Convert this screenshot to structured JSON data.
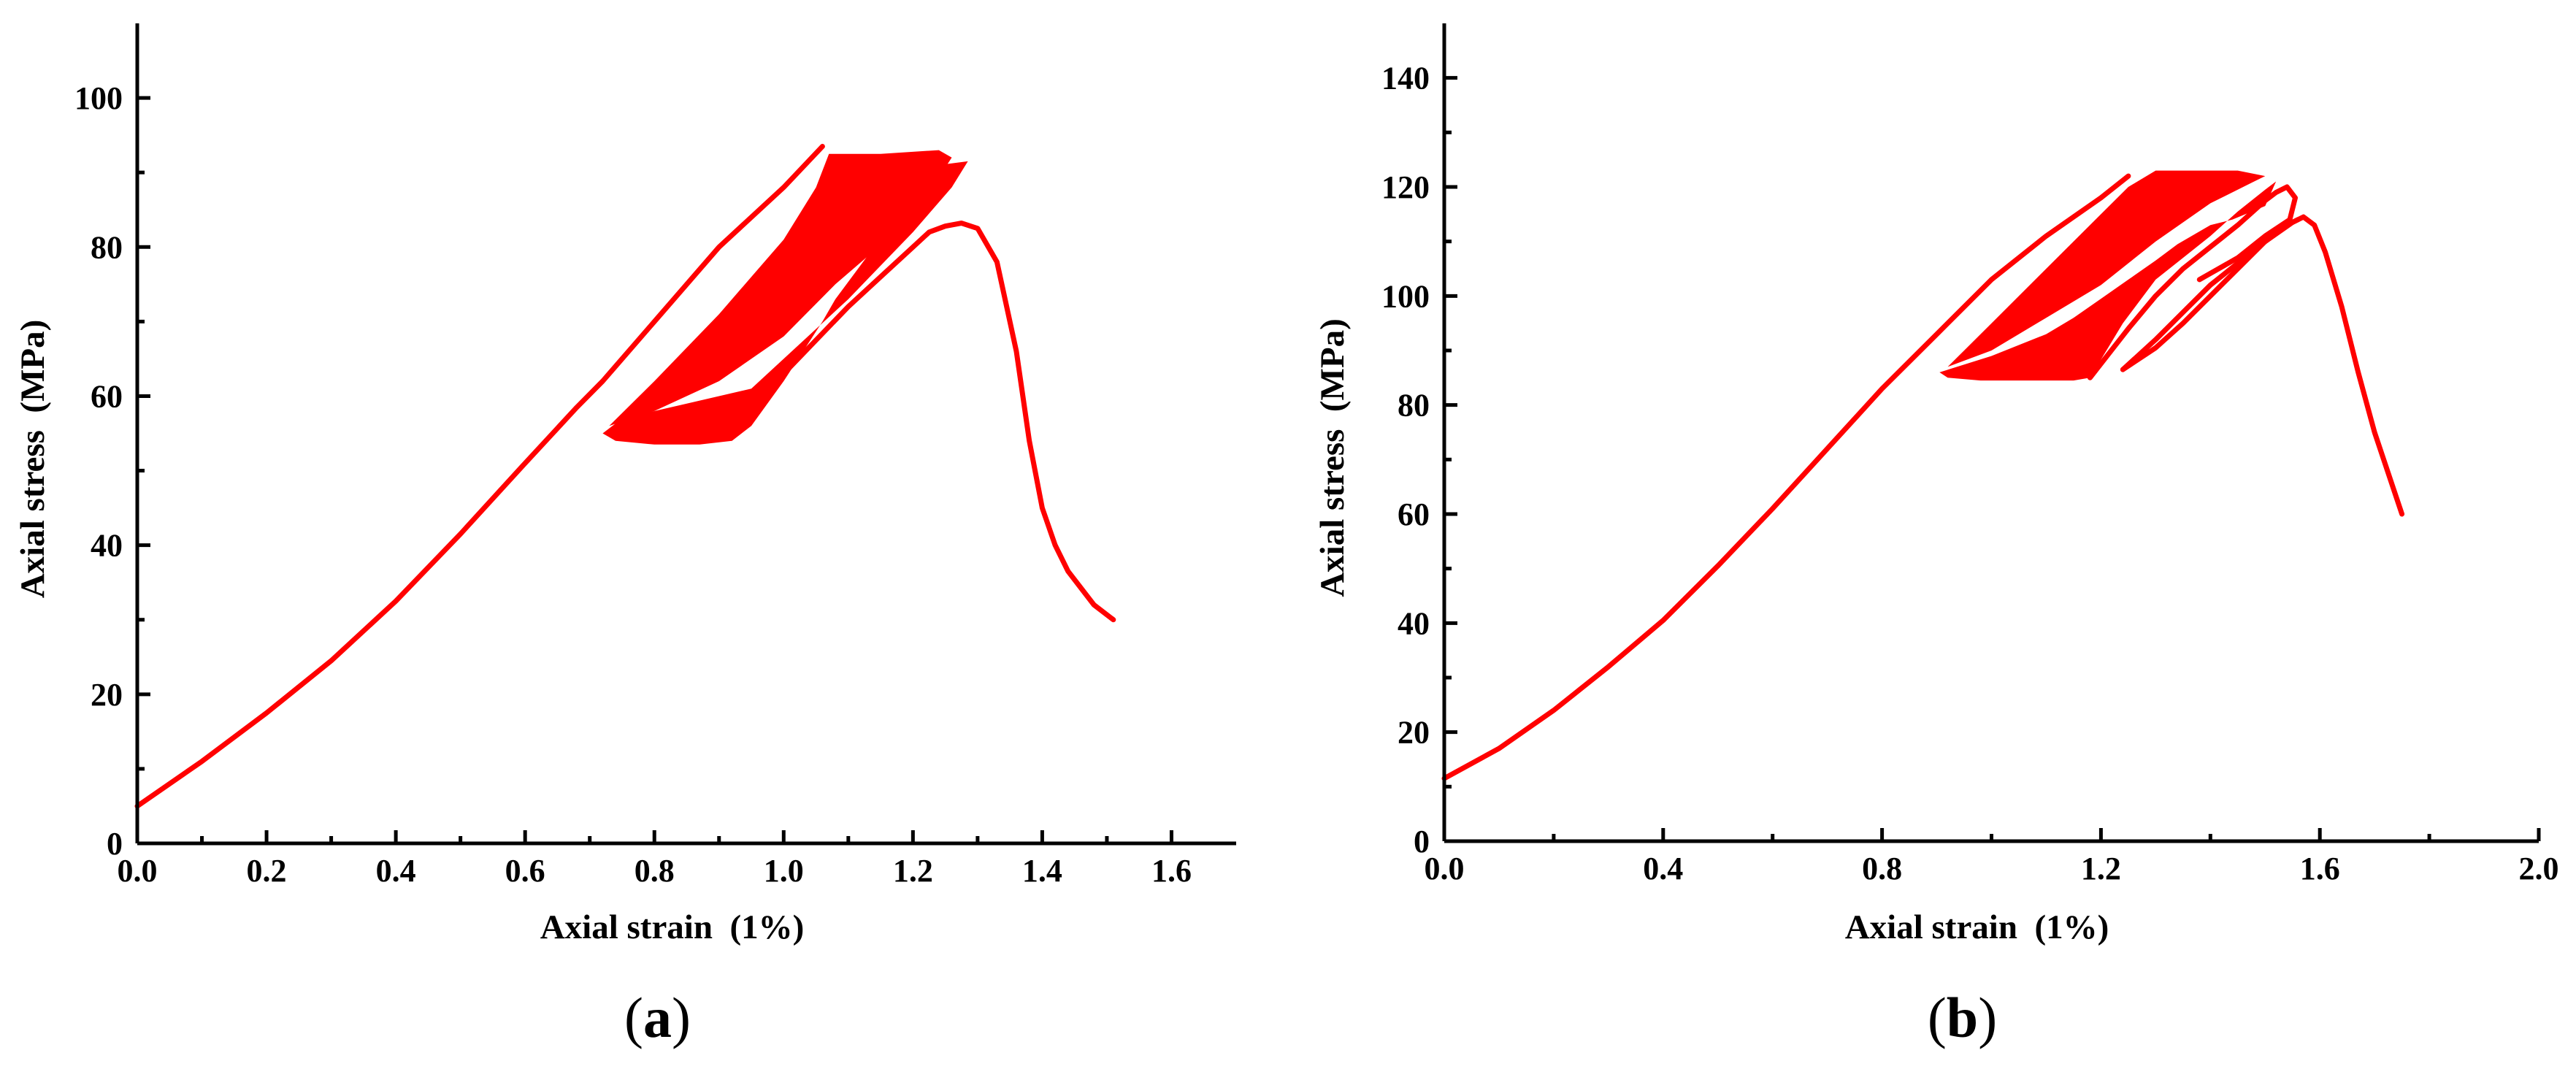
{
  "colors": {
    "curve": "#ff0000",
    "axis": "#000000",
    "background": "#ffffff"
  },
  "chart_data": [
    {
      "type": "line",
      "panel_label": {
        "open": "(",
        "letter": "a",
        "close": ")"
      },
      "xlabel": "Axial strain  (1%)",
      "ylabel": "Axial stress  (MPa)",
      "xlim": [
        0,
        1.7
      ],
      "ylim": [
        0,
        110
      ],
      "x_ticks": [
        0.0,
        0.2,
        0.4,
        0.6,
        0.8,
        1.0,
        1.2,
        1.4,
        1.6
      ],
      "x_tick_labels": [
        "0.0",
        "0.2",
        "0.4",
        "0.6",
        "0.8",
        "1.0",
        "1.2",
        "1.4",
        "1.6"
      ],
      "x_minor_ticks": [
        0.1,
        0.3,
        0.5,
        0.7,
        0.9,
        1.1,
        1.3,
        1.5
      ],
      "y_ticks": [
        0,
        20,
        40,
        60,
        80,
        100
      ],
      "y_tick_labels": [
        "0",
        "20",
        "40",
        "60",
        "80",
        "100"
      ],
      "y_minor_ticks": [
        10,
        30,
        50,
        70,
        90
      ],
      "grid": false,
      "series": [
        {
          "role": "loading-curve",
          "color": "#ff0000",
          "x": [
            0.0,
            0.1,
            0.2,
            0.3,
            0.4,
            0.5,
            0.6,
            0.68,
            0.72,
            0.8,
            0.9,
            1.0,
            1.06
          ],
          "y": [
            5,
            11,
            17.5,
            24.5,
            32.5,
            41.5,
            51,
            58.5,
            62,
            70,
            80,
            88,
            93.5
          ]
        },
        {
          "role": "cyclic-band",
          "color": "#ff0000",
          "x": [
            0.72,
            0.74,
            0.8,
            0.87,
            0.92,
            0.95,
            1.0,
            1.06,
            1.08,
            1.2,
            1.24,
            1.285,
            1.26,
            1.2,
            1.1,
            1.0,
            0.95,
            0.85,
            0.75,
            0.72
          ],
          "y": [
            55,
            54,
            53.5,
            53.5,
            54,
            56,
            62,
            70,
            73,
            87,
            91,
            91.5,
            88,
            82,
            73,
            65,
            61,
            59,
            57,
            55
          ]
        },
        {
          "role": "cyclic-band",
          "color": "#ff0000",
          "x": [
            0.73,
            0.8,
            0.9,
            1.0,
            1.05,
            1.07,
            1.15,
            1.24,
            1.26,
            1.2,
            1.12,
            1.08,
            1.0,
            0.9,
            0.8,
            0.73
          ],
          "y": [
            56,
            62,
            71,
            81,
            88,
            92.5,
            92.5,
            93,
            92,
            84,
            78,
            75,
            68,
            62,
            58,
            56
          ]
        },
        {
          "role": "post-peak-curve",
          "color": "#ff0000",
          "x": [
            0.9,
            1.0,
            1.1,
            1.15,
            1.2,
            1.225,
            1.25,
            1.275,
            1.3,
            1.33,
            1.36,
            1.38,
            1.4,
            1.42,
            1.44,
            1.48,
            1.51
          ],
          "y": [
            55,
            63,
            72,
            76,
            80,
            82,
            82.8,
            83.2,
            82.5,
            78,
            66,
            54,
            45,
            40,
            36.5,
            32,
            30
          ]
        }
      ]
    },
    {
      "type": "line",
      "panel_label": {
        "open": "(",
        "letter": "b",
        "close": ")"
      },
      "xlabel": "Axial strain  (1%)",
      "ylabel": "Axial stress  (MPa)",
      "xlim": [
        0,
        2.0
      ],
      "ylim": [
        0,
        150
      ],
      "x_ticks": [
        0.0,
        0.4,
        0.8,
        1.2,
        1.6,
        2.0
      ],
      "x_tick_labels": [
        "0.0",
        "0.4",
        "0.8",
        "1.2",
        "1.6",
        "2.0"
      ],
      "x_minor_ticks": [
        0.2,
        0.6,
        1.0,
        1.4,
        1.8
      ],
      "y_ticks": [
        0,
        20,
        40,
        60,
        80,
        100,
        120,
        140
      ],
      "y_tick_labels": [
        "0",
        "20",
        "40",
        "60",
        "80",
        "100",
        "120",
        "140"
      ],
      "y_minor_ticks": [
        10,
        30,
        50,
        70,
        90,
        110,
        130
      ],
      "grid": false,
      "series": [
        {
          "role": "loading-curve",
          "color": "#ff0000",
          "x": [
            0.0,
            0.1,
            0.2,
            0.3,
            0.4,
            0.5,
            0.6,
            0.7,
            0.8,
            0.9,
            1.0,
            1.1,
            1.2,
            1.25
          ],
          "y": [
            11.5,
            17,
            24,
            32,
            40.5,
            50.5,
            61,
            72,
            83,
            93,
            103,
            111,
            118,
            122
          ]
        },
        {
          "role": "cyclic-band",
          "color": "#ff0000",
          "x": [
            0.905,
            0.92,
            0.98,
            1.05,
            1.1,
            1.15,
            1.18,
            1.24,
            1.3,
            1.35,
            1.4,
            1.45,
            1.5,
            1.52,
            1.5,
            1.44,
            1.4,
            1.34,
            1.3,
            1.25,
            1.2,
            1.15,
            1.1,
            1.0,
            0.905
          ],
          "y": [
            86,
            85,
            84.5,
            84.5,
            84.5,
            84.5,
            85,
            95,
            103,
            107,
            111,
            115.5,
            119.5,
            121,
            116.5,
            114,
            113,
            109.5,
            106.5,
            103,
            99.5,
            96,
            93,
            89,
            86
          ]
        },
        {
          "role": "cyclic-band",
          "color": "#ff0000",
          "x": [
            0.92,
            1.0,
            1.1,
            1.2,
            1.25,
            1.3,
            1.4,
            1.45,
            1.5,
            1.48,
            1.4,
            1.3,
            1.2,
            1.1,
            1.0,
            0.92
          ],
          "y": [
            87,
            95,
            105,
            115,
            120,
            123,
            123,
            123,
            122,
            121,
            117,
            110,
            102,
            96,
            90,
            87
          ]
        },
        {
          "role": "loop",
          "color": "#ff0000",
          "x": [
            1.18,
            1.25,
            1.3,
            1.35,
            1.4,
            1.45,
            1.5,
            1.52,
            1.54,
            1.555,
            1.545,
            1.5,
            1.45,
            1.38
          ],
          "y": [
            85,
            94,
            100,
            105,
            109,
            113,
            117.5,
            119,
            120,
            118,
            114,
            111,
            107,
            103
          ]
        },
        {
          "role": "loop",
          "color": "#ff0000",
          "x": [
            1.24,
            1.3,
            1.35,
            1.4,
            1.45,
            1.5,
            1.54,
            1.56
          ],
          "y": [
            86.5,
            92,
            97,
            102,
            106,
            110,
            113,
            114
          ]
        },
        {
          "role": "post-peak-curve",
          "color": "#ff0000",
          "x": [
            1.24,
            1.3,
            1.35,
            1.4,
            1.45,
            1.5,
            1.55,
            1.57,
            1.59,
            1.61,
            1.64,
            1.67,
            1.7,
            1.75
          ],
          "y": [
            86.5,
            90.5,
            95,
            100,
            105,
            110,
            113.5,
            114.5,
            113,
            108,
            98,
            86,
            75,
            60
          ]
        }
      ]
    }
  ]
}
